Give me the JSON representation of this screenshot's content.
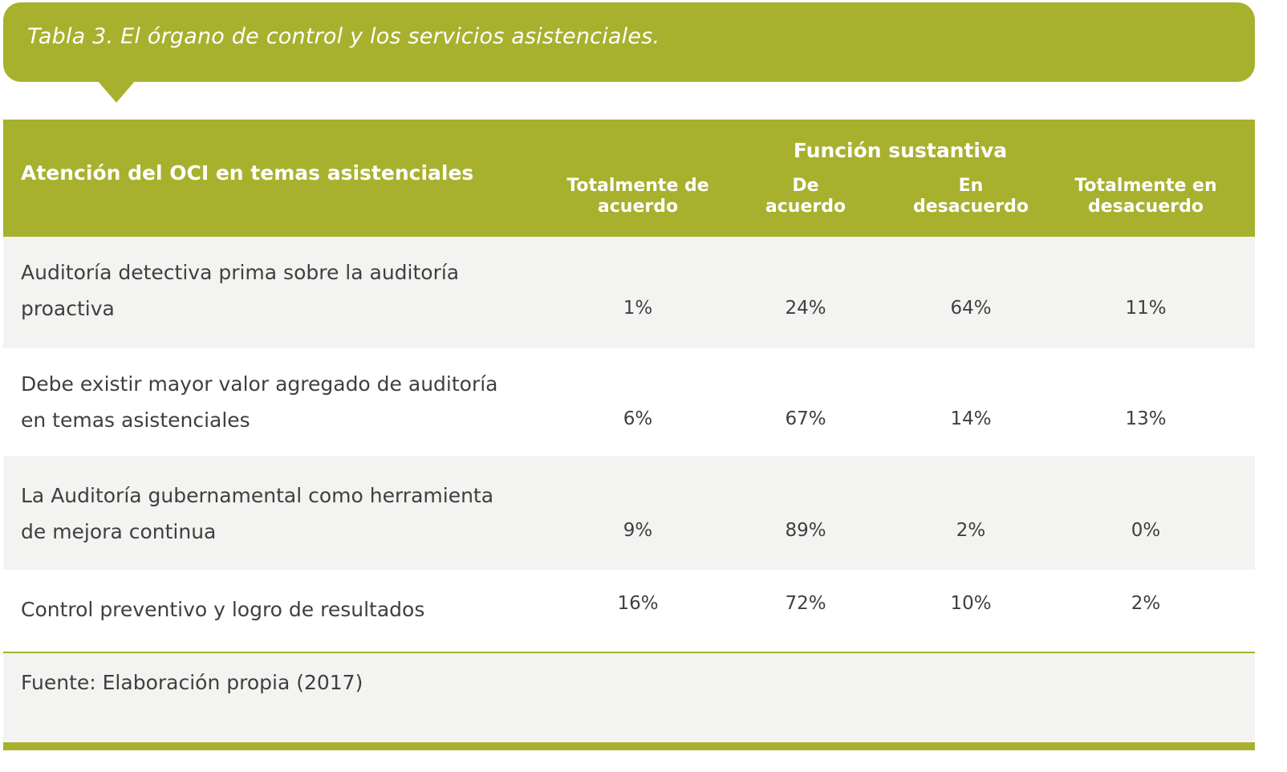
{
  "caption": "Tabla 3. El órgano de control y los servicios asistenciales.",
  "header": {
    "first_col": "Atención del OCI en temas asistenciales",
    "group": "Función sustantiva",
    "columns": [
      [
        "Totalmente de",
        "acuerdo"
      ],
      [
        "De",
        "acuerdo"
      ],
      [
        "En",
        "desacuerdo"
      ],
      [
        "Totalmente en",
        "desacuerdo"
      ]
    ]
  },
  "rows": [
    {
      "label": [
        "Auditoría detectiva prima sobre la auditoría",
        "proactiva"
      ],
      "values": [
        "1%",
        "24%",
        "64%",
        "11%"
      ]
    },
    {
      "label": [
        "Debe existir mayor valor agregado de auditoría",
        "en temas asistenciales"
      ],
      "values": [
        "6%",
        "67%",
        "14%",
        "13%"
      ]
    },
    {
      "label": [
        "La Auditoría gubernamental como herramienta",
        "de mejora continua"
      ],
      "values": [
        "9%",
        "89%",
        "2%",
        "0%"
      ]
    },
    {
      "label": [
        "Control preventivo y logro de resultados"
      ],
      "values": [
        "16%",
        "72%",
        "10%",
        "2%"
      ]
    }
  ],
  "source": "Fuente: Elaboración propia (2017)",
  "colors": {
    "accent": "#a8b12e",
    "row_gray": "#f3f3f1",
    "text": "#3f3f3f"
  }
}
